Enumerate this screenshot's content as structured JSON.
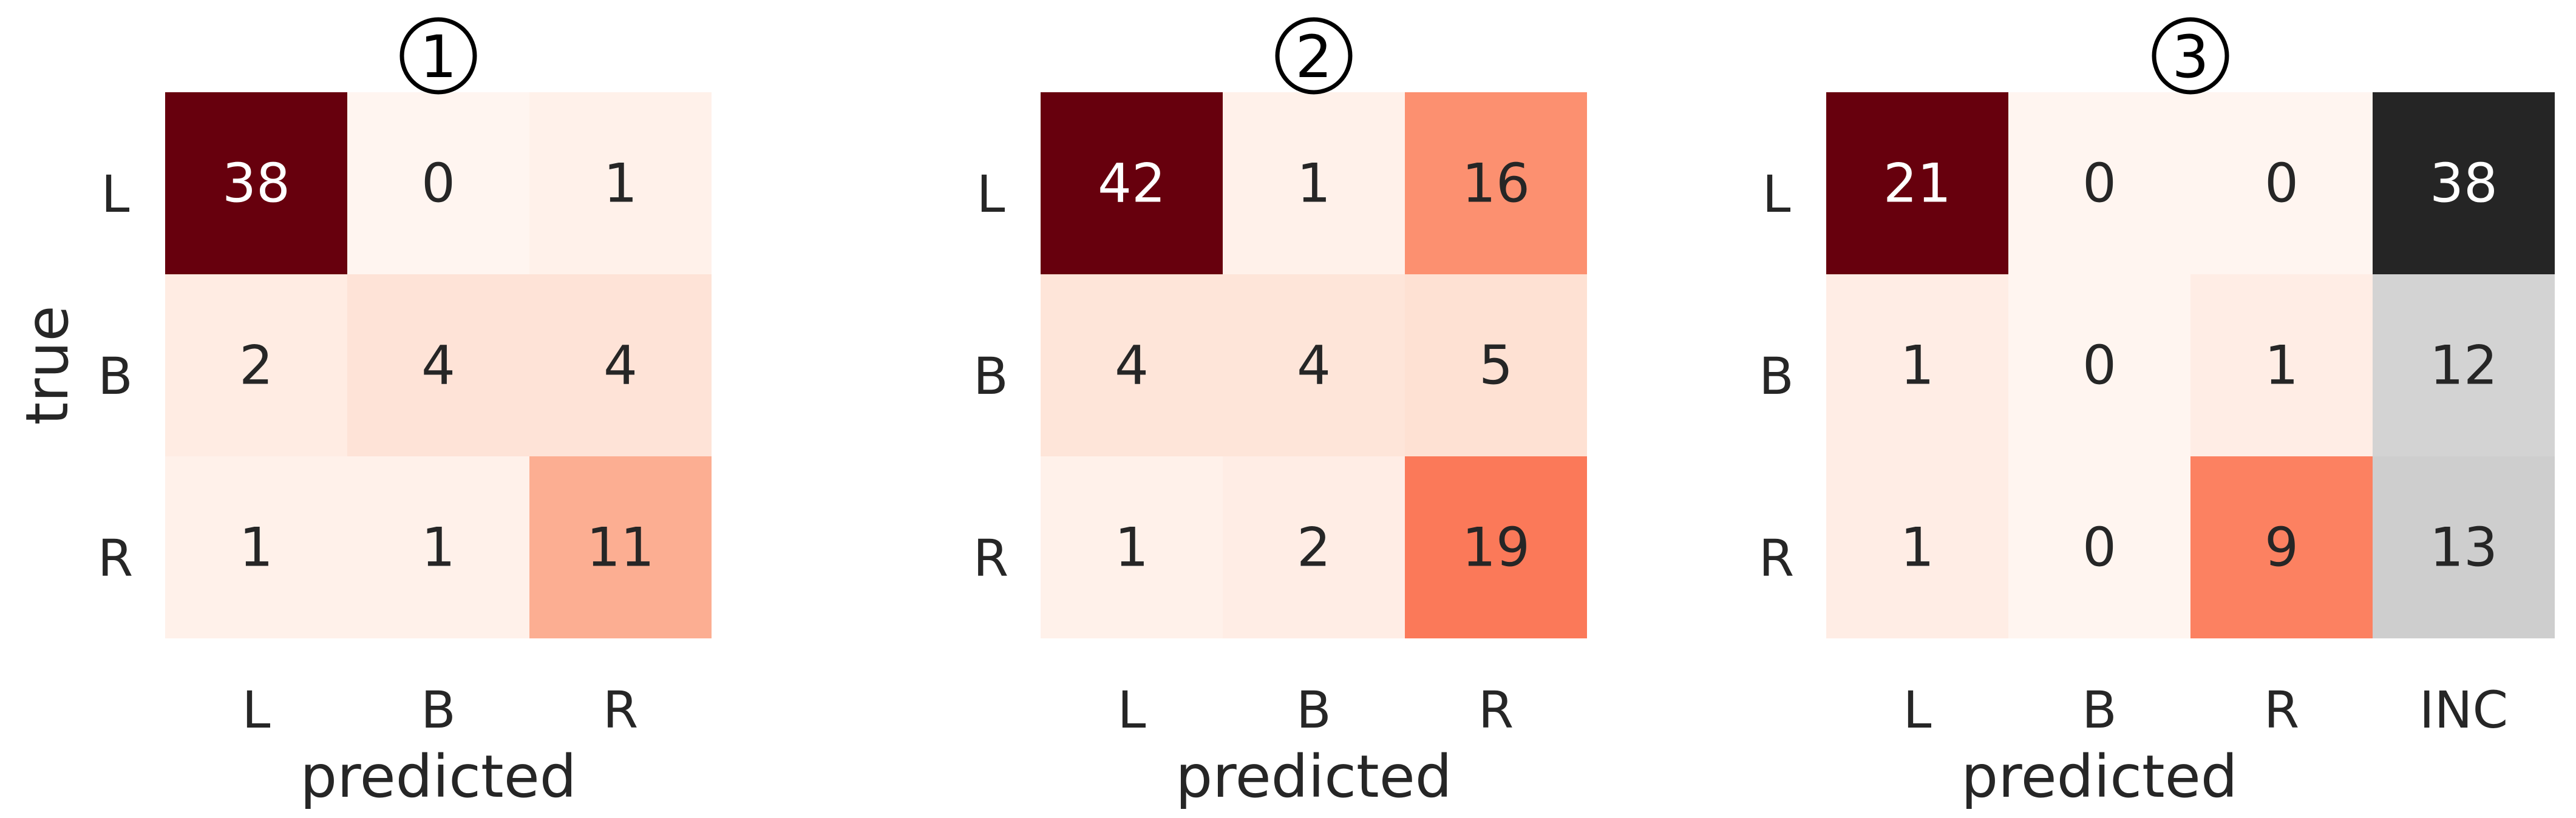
{
  "colors": {
    "text_dark": "#262626",
    "text_light": "#ffffff",
    "reds_scale": [
      "#fff5f0",
      "#fee0d2",
      "#fcbba1",
      "#fc9272",
      "#fb6a4a",
      "#ef3b2c",
      "#cb181d",
      "#a50f15",
      "#67000d"
    ],
    "greys_scale": [
      "#ffffff",
      "#f0f0f0",
      "#d9d9d9",
      "#bdbdbd",
      "#969696",
      "#737373",
      "#525252",
      "#252525"
    ]
  },
  "chart_data": [
    {
      "type": "heatmap",
      "title": "①",
      "xlabel": "predicted",
      "ylabel": "true",
      "x_ticks": [
        "L",
        "B",
        "R"
      ],
      "y_ticks": [
        "L",
        "B",
        "R"
      ],
      "colormap": "reds",
      "values": [
        [
          38,
          0,
          1
        ],
        [
          2,
          4,
          4
        ],
        [
          1,
          1,
          11
        ]
      ]
    },
    {
      "type": "heatmap",
      "title": "②",
      "xlabel": "predicted",
      "ylabel": "",
      "x_ticks": [
        "L",
        "B",
        "R"
      ],
      "y_ticks": [
        "L",
        "B",
        "R"
      ],
      "colormap": "reds",
      "values": [
        [
          42,
          1,
          16
        ],
        [
          4,
          4,
          5
        ],
        [
          1,
          2,
          19
        ]
      ]
    },
    {
      "type": "heatmap",
      "title": "③",
      "xlabel": "predicted",
      "ylabel": "",
      "x_ticks": [
        "L",
        "B",
        "R",
        "INC"
      ],
      "y_ticks": [
        "L",
        "B",
        "R"
      ],
      "colormap": "reds",
      "extra_column_colormap": "greys",
      "values": [
        [
          21,
          0,
          0,
          38
        ],
        [
          1,
          0,
          1,
          12
        ],
        [
          1,
          0,
          9,
          13
        ]
      ]
    }
  ]
}
